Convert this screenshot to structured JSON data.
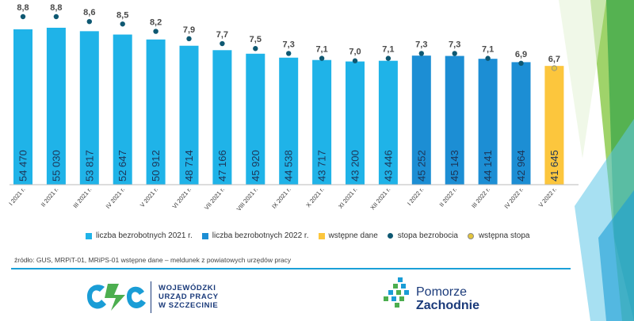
{
  "chart_data": {
    "type": "bar",
    "categories": [
      "I 2021 r.",
      "II 2021 r.",
      "III 2021 r.",
      "IV 2021 r.",
      "V 2021 r.",
      "VI 2021 r.",
      "VII 2021 r.",
      "VIII 2021 r.",
      "IX 2021 r.",
      "X 2021 r.",
      "XI 2021 r.",
      "XII 2021 r.",
      "I 2022 r.",
      "II 2022 r.",
      "III 2022 r.",
      "IV 2022 r.",
      "V 2022 r."
    ],
    "values": [
      54470,
      55030,
      53817,
      52647,
      50912,
      48714,
      47166,
      45920,
      44538,
      43717,
      43200,
      43446,
      45252,
      45143,
      44141,
      42964,
      41645
    ],
    "value_labels": [
      "54 470",
      "55 030",
      "53 817",
      "52 647",
      "50 912",
      "48 714",
      "47 166",
      "45 920",
      "44 538",
      "43 717",
      "43 200",
      "43 446",
      "45 252",
      "45 143",
      "44 141",
      "42 964",
      "41 645"
    ],
    "series_group": [
      "2021",
      "2021",
      "2021",
      "2021",
      "2021",
      "2021",
      "2021",
      "2021",
      "2021",
      "2021",
      "2021",
      "2021",
      "2022",
      "2022",
      "2022",
      "2022",
      "prelim"
    ],
    "rate": [
      8.8,
      8.8,
      8.6,
      8.5,
      8.2,
      7.9,
      7.7,
      7.5,
      7.3,
      7.1,
      7.0,
      7.1,
      7.3,
      7.3,
      7.1,
      6.9,
      6.7
    ],
    "rate_labels": [
      "8,8",
      "8,8",
      "8,6",
      "8,5",
      "8,2",
      "7,9",
      "7,7",
      "7,5",
      "7,3",
      "7,1",
      "7,0",
      "7,1",
      "7,3",
      "7,3",
      "7,1",
      "6,9",
      "6,7"
    ],
    "colors": {
      "2021": "#1fb3e8",
      "2022": "#1c8ed4",
      "prelim": "#fcc63d",
      "rate": "#0e5872",
      "rate_prelim": "#e3c43b"
    }
  },
  "legend": [
    {
      "label": "liczba bezrobotnych 2021 r.",
      "kind": "box",
      "color": "#1fb3e8"
    },
    {
      "label": "liczba bezrobotnych 2022 r.",
      "kind": "box",
      "color": "#1c8ed4"
    },
    {
      "label": "wstępne dane",
      "kind": "box",
      "color": "#fcc63d"
    },
    {
      "label": "stopa bezrobocia",
      "kind": "dot",
      "color": "#0e5872"
    },
    {
      "label": "wstępna stopa",
      "kind": "dot-pre",
      "color": "#e3c43b"
    }
  ],
  "source": "źródło: GUS, MRPiT-01, MRiPS-01 wstępne dane – meldunek z powiatowych urzędów pracy",
  "logos": {
    "wup_line1": "WOJEWÓDZKI",
    "wup_line2": "URZĄD PRACY",
    "wup_line3": "W SZCZECINIE",
    "pz_line1": "Pomorze",
    "pz_line2": "Zachodnie"
  }
}
